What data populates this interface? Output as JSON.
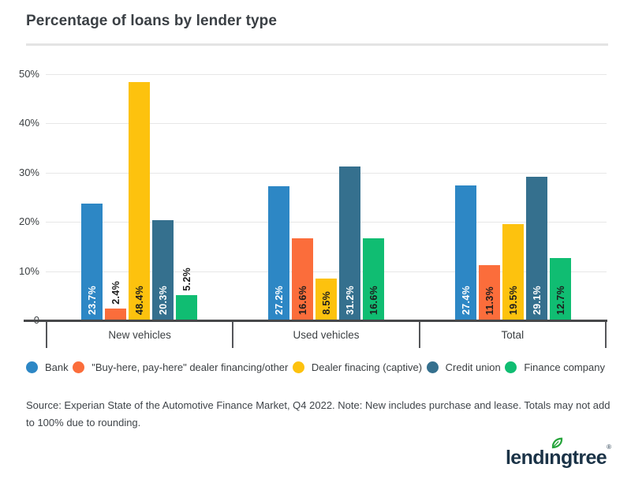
{
  "title": "Percentage of loans by lender type",
  "source_note": "Source: Experian State of the Automotive Finance Market, Q4 2022. Note: New includes purchase and lease. Totals may not add to 100% due to rounding.",
  "logo": {
    "text": "lendingtree",
    "mark": "®",
    "navy": "#1b3347",
    "leaf_green": "#27a53c"
  },
  "colors": {
    "title_text": "#3b4045",
    "axis": "#47484a",
    "gridline": "#e7e7e7",
    "divider": "#e4e4e4",
    "body_text": "#3c4043",
    "background": "#ffffff"
  },
  "chart_data": {
    "type": "bar",
    "title": "Percentage of loans by lender type",
    "categories": [
      "New vehicles",
      "Used vehicles",
      "Total"
    ],
    "series": [
      {
        "name": "Bank",
        "color": "#2d87c5",
        "label_text_color": "#ffffff",
        "values": [
          23.7,
          27.2,
          27.4
        ]
      },
      {
        "name": "\"Buy-here, pay-here\" dealer financing/other",
        "color": "#fb6d3b",
        "label_text_color": "#1d1d1d",
        "values": [
          2.4,
          16.6,
          11.3
        ]
      },
      {
        "name": "Dealer finacing (captive)",
        "color": "#fdc20e",
        "label_text_color": "#1d1d1d",
        "values": [
          48.4,
          8.5,
          19.5
        ]
      },
      {
        "name": "Credit union",
        "color": "#35708e",
        "label_text_color": "#ffffff",
        "values": [
          20.3,
          31.2,
          29.1
        ]
      },
      {
        "name": "Finance company",
        "color": "#10bd72",
        "label_text_color": "#1d1d1d",
        "values": [
          5.2,
          16.6,
          12.7
        ]
      }
    ],
    "value_suffix": "%",
    "ylim": [
      0,
      50
    ],
    "yticks": [
      {
        "value": 50,
        "label": "50%"
      },
      {
        "value": 40,
        "label": "40%"
      },
      {
        "value": 30,
        "label": "30%"
      },
      {
        "value": 20,
        "label": "20%"
      },
      {
        "value": 10,
        "label": "10%"
      },
      {
        "value": 0,
        "label": "0"
      }
    ],
    "grid": true,
    "legend_position": "bottom"
  }
}
